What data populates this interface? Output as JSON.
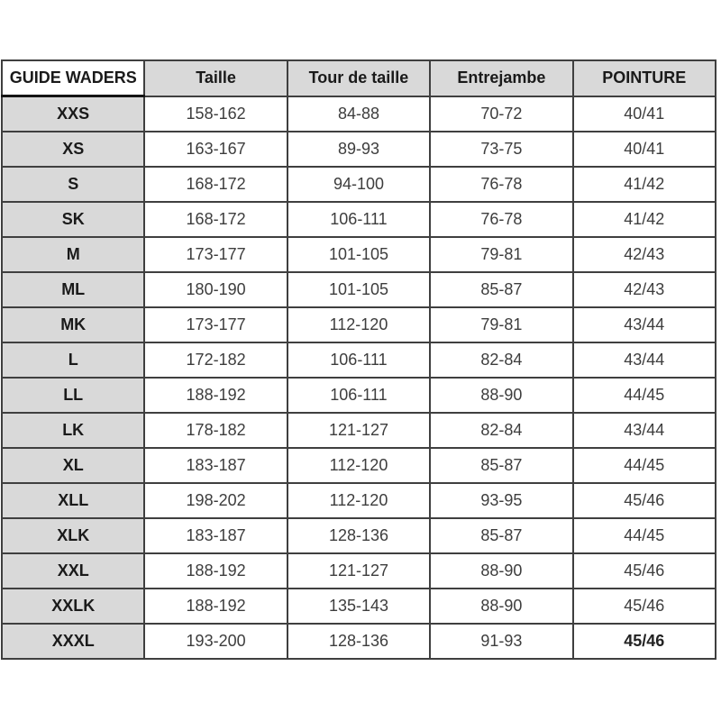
{
  "page": {
    "background": "#ffffff"
  },
  "chart_data": {
    "type": "table",
    "title": "GUIDE WADERS",
    "columns": [
      "GUIDE WADERS",
      "Taille",
      "Tour de taille",
      "Entrejambe",
      "POINTURE"
    ],
    "rows": [
      [
        "XXS",
        "158-162",
        "84-88",
        "70-72",
        "40/41"
      ],
      [
        "XS",
        "163-167",
        "89-93",
        "73-75",
        "40/41"
      ],
      [
        "S",
        "168-172",
        "94-100",
        "76-78",
        "41/42"
      ],
      [
        "SK",
        "168-172",
        "106-111",
        "76-78",
        "41/42"
      ],
      [
        "M",
        "173-177",
        "101-105",
        "79-81",
        "42/43"
      ],
      [
        "ML",
        "180-190",
        "101-105",
        "85-87",
        "42/43"
      ],
      [
        "MK",
        "173-177",
        "112-120",
        "79-81",
        "43/44"
      ],
      [
        "L",
        "172-182",
        "106-111",
        "82-84",
        "43/44"
      ],
      [
        "LL",
        "188-192",
        "106-111",
        "88-90",
        "44/45"
      ],
      [
        "LK",
        "178-182",
        "121-127",
        "82-84",
        "43/44"
      ],
      [
        "XL",
        "183-187",
        "112-120",
        "85-87",
        "44/45"
      ],
      [
        "XLL",
        "198-202",
        "112-120",
        "93-95",
        "45/46"
      ],
      [
        "XLK",
        "183-187",
        "128-136",
        "85-87",
        "44/45"
      ],
      [
        "XXL",
        "188-192",
        "121-127",
        "88-90",
        "45/46"
      ],
      [
        "XXLK",
        "188-192",
        "135-143",
        "88-90",
        "45/46"
      ],
      [
        "XXXL",
        "193-200",
        "128-136",
        "91-93",
        "45/46"
      ]
    ],
    "bold_cells": [
      {
        "row": 15,
        "col": 4
      }
    ],
    "layout_hints": {
      "header_row_shaded": true,
      "first_column_shaded": true,
      "corner_cell_white": true,
      "grid": true
    }
  },
  "styles": {
    "header_bg": "#d9d9d9",
    "size_col_bg": "#d9d9d9",
    "corner_bg": "#ffffff",
    "border_color": "#3f3f3f",
    "header_text_color": "#1a1a1a",
    "data_text_color": "#3d3d3d"
  }
}
